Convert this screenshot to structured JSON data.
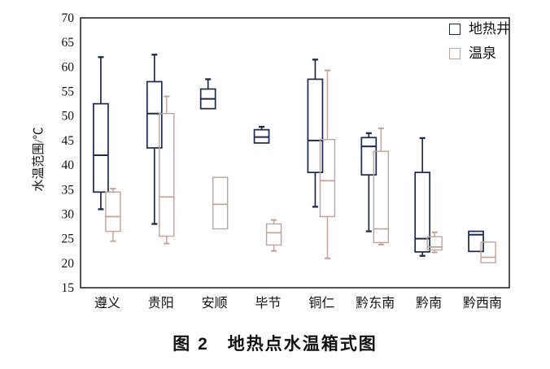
{
  "figure": {
    "caption": "图 2　地热点水温箱式图"
  },
  "colors": {
    "axis": "#1a1a1a",
    "well_series": "#1e2a47",
    "spring_series": "#c1a39b",
    "background": "#ffffff"
  },
  "chart_data": {
    "type": "boxplot",
    "title": "",
    "xlabel": "",
    "ylabel": "水温范围/℃",
    "ylim": [
      15,
      70
    ],
    "yticks": [
      70,
      65,
      60,
      55,
      50,
      45,
      40,
      35,
      30,
      25,
      20,
      15
    ],
    "grid": false,
    "legend_position": "top-right-inside",
    "categories": [
      "遵义",
      "贵阳",
      "安顺",
      "毕节",
      "铜仁",
      "黔东南",
      "黔南",
      "黔西南"
    ],
    "series": [
      {
        "name": "地热井",
        "color": "#1e2a47",
        "boxes": [
          {
            "min": 31.0,
            "q1": 34.5,
            "median": 42.0,
            "q3": 52.5,
            "max": 62.0
          },
          {
            "min": 28.0,
            "q1": 43.5,
            "median": 50.5,
            "q3": 57.0,
            "max": 62.5
          },
          {
            "min": 51.5,
            "q1": 51.5,
            "median": 53.5,
            "q3": 55.5,
            "max": 57.5
          },
          {
            "min": 44.5,
            "q1": 44.5,
            "median": 45.7,
            "q3": 47.2,
            "max": 47.8
          },
          {
            "min": 31.5,
            "q1": 38.5,
            "median": 45.0,
            "q3": 57.5,
            "max": 61.5
          },
          {
            "min": 26.5,
            "q1": 38.0,
            "median": 43.8,
            "q3": 45.6,
            "max": 46.5
          },
          {
            "min": 21.5,
            "q1": 22.3,
            "median": 25.0,
            "q3": 38.5,
            "max": 45.5
          },
          {
            "min": 22.4,
            "q1": 22.4,
            "median": 25.8,
            "q3": 26.5,
            "max": 26.5
          }
        ]
      },
      {
        "name": "温泉",
        "color": "#c1a39b",
        "boxes": [
          {
            "min": 24.5,
            "q1": 26.5,
            "median": 29.5,
            "q3": 34.5,
            "max": 35.2
          },
          {
            "min": 24.0,
            "q1": 25.5,
            "median": 33.5,
            "q3": 50.5,
            "max": 54.0
          },
          {
            "min": 27.0,
            "q1": 27.0,
            "median": 32.0,
            "q3": 37.5,
            "max": 37.5
          },
          {
            "min": 22.5,
            "q1": 23.7,
            "median": 26.2,
            "q3": 28.0,
            "max": 28.8
          },
          {
            "min": 21.0,
            "q1": 29.5,
            "median": 36.8,
            "q3": 45.2,
            "max": 59.3
          },
          {
            "min": 23.8,
            "q1": 24.2,
            "median": 27.0,
            "q3": 42.8,
            "max": 47.5
          },
          {
            "min": 22.2,
            "q1": 22.7,
            "median": 23.3,
            "q3": 25.4,
            "max": 26.3
          },
          {
            "min": 20.1,
            "q1": 20.1,
            "median": 21.2,
            "q3": 24.3,
            "max": 24.3
          }
        ]
      }
    ]
  }
}
